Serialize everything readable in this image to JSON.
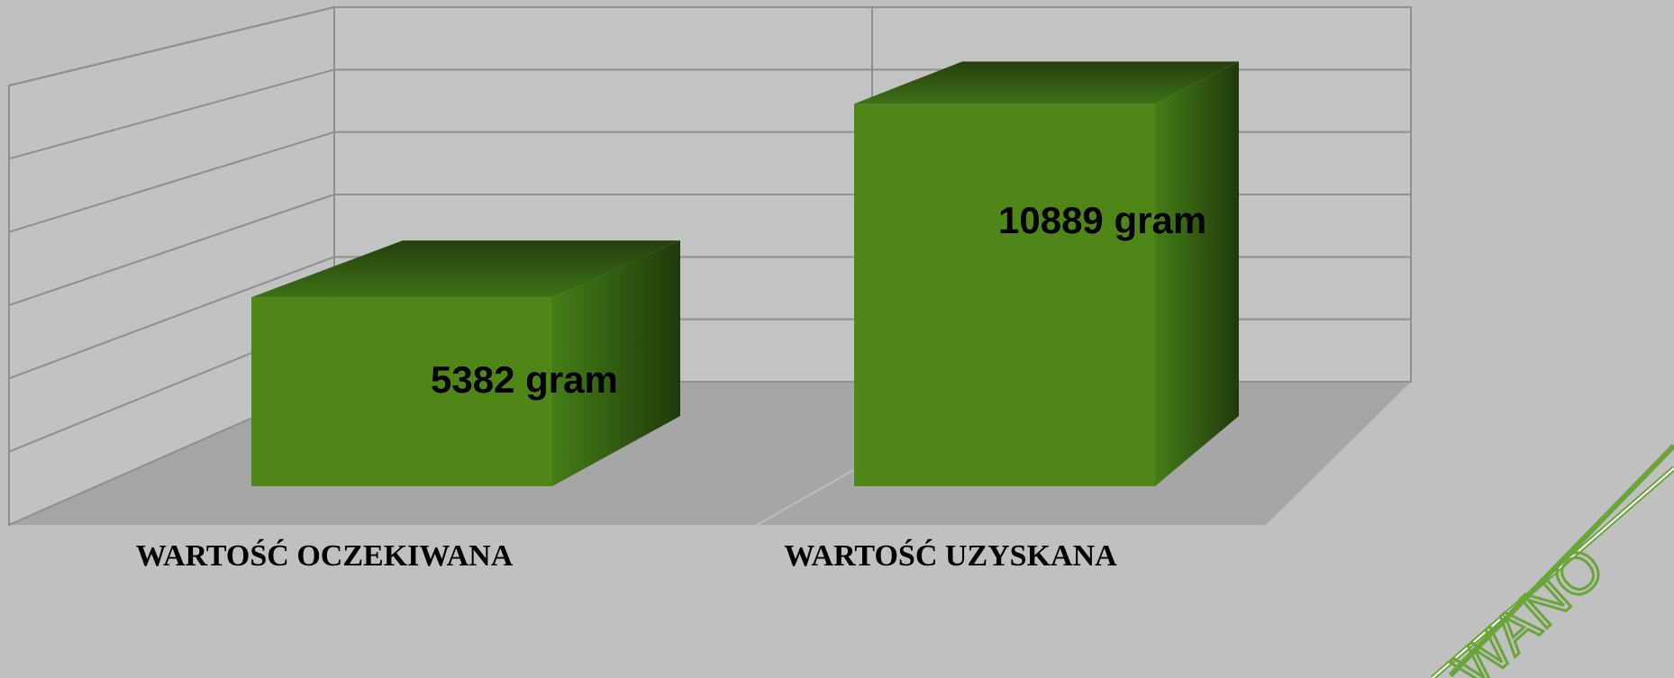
{
  "chart_data": {
    "type": "bar3d",
    "categories": [
      "WARTOŚĆ OCZEKIWANA",
      "WARTOŚĆ UZYSKANA"
    ],
    "values": [
      5382,
      10889
    ],
    "value_labels": [
      "5382 gram",
      "10889 gram"
    ],
    "color": "#4e8718",
    "ylim": [
      0,
      12000
    ],
    "yticks": [
      0,
      2000,
      4000,
      6000,
      8000,
      10000,
      12000
    ],
    "grid": true,
    "stamp": "WANO"
  }
}
